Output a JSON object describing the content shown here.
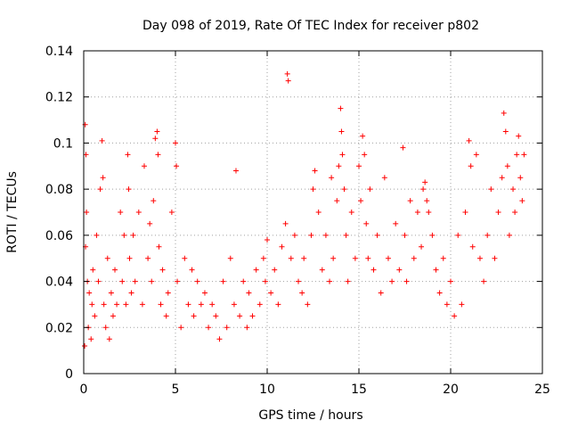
{
  "chart_data": {
    "type": "scatter",
    "title": "Day 098 of 2019, Rate Of TEC Index for receiver p802",
    "xlabel": "GPS time / hours",
    "ylabel": "ROTI / TECUs",
    "xlim": [
      0,
      25
    ],
    "ylim": [
      0,
      0.14
    ],
    "x_ticks": [
      "0",
      "5",
      "10",
      "15",
      "20",
      "25"
    ],
    "y_ticks": [
      "0",
      "0.02",
      "0.04",
      "0.06",
      "0.08",
      "0.1",
      "0.12",
      "0.14"
    ],
    "grid": true,
    "marker": "plus",
    "color": "#ff0000",
    "series": [
      {
        "name": "ROTI",
        "x": [
          0.05,
          0.08,
          0.1,
          0.12,
          0.15,
          0.2,
          0.25,
          0.3,
          0.4,
          0.45,
          0.5,
          0.6,
          0.7,
          0.8,
          0.9,
          1.0,
          1.05,
          1.1,
          1.2,
          1.3,
          1.4,
          1.5,
          1.6,
          1.7,
          1.8,
          2.0,
          2.1,
          2.2,
          2.3,
          2.4,
          2.45,
          2.5,
          2.6,
          2.7,
          2.8,
          3.0,
          3.2,
          3.3,
          3.5,
          3.6,
          3.7,
          3.8,
          3.9,
          4.0,
          4.05,
          4.1,
          4.2,
          4.3,
          4.5,
          4.6,
          4.8,
          5.0,
          5.05,
          5.1,
          5.3,
          5.5,
          5.7,
          5.9,
          6.0,
          6.2,
          6.4,
          6.6,
          6.8,
          7.0,
          7.2,
          7.4,
          7.6,
          7.8,
          8.0,
          8.2,
          8.3,
          8.5,
          8.7,
          8.9,
          9.0,
          9.2,
          9.4,
          9.6,
          9.8,
          9.9,
          10.0,
          10.2,
          10.4,
          10.6,
          10.8,
          11.0,
          11.1,
          11.15,
          11.3,
          11.5,
          11.7,
          11.9,
          12.0,
          12.2,
          12.4,
          12.5,
          12.6,
          12.8,
          13.0,
          13.2,
          13.4,
          13.5,
          13.6,
          13.8,
          13.9,
          14.0,
          14.05,
          14.1,
          14.2,
          14.3,
          14.4,
          14.6,
          14.8,
          15.0,
          15.1,
          15.2,
          15.3,
          15.4,
          15.5,
          15.6,
          15.8,
          16.0,
          16.2,
          16.4,
          16.6,
          16.8,
          17.0,
          17.2,
          17.4,
          17.5,
          17.6,
          17.8,
          18.0,
          18.2,
          18.4,
          18.5,
          18.6,
          18.7,
          18.8,
          19.0,
          19.2,
          19.4,
          19.6,
          19.8,
          20.0,
          20.2,
          20.4,
          20.6,
          20.8,
          21.0,
          21.1,
          21.2,
          21.4,
          21.6,
          21.8,
          22.0,
          22.2,
          22.4,
          22.6,
          22.8,
          22.9,
          23.0,
          23.1,
          23.2,
          23.4,
          23.5,
          23.6,
          23.7,
          23.8,
          23.9,
          24.0
        ],
        "y": [
          0.012,
          0.108,
          0.055,
          0.095,
          0.07,
          0.04,
          0.02,
          0.035,
          0.015,
          0.03,
          0.045,
          0.025,
          0.06,
          0.04,
          0.08,
          0.101,
          0.085,
          0.03,
          0.02,
          0.05,
          0.015,
          0.035,
          0.025,
          0.045,
          0.03,
          0.07,
          0.04,
          0.06,
          0.03,
          0.095,
          0.08,
          0.05,
          0.035,
          0.06,
          0.04,
          0.07,
          0.03,
          0.09,
          0.05,
          0.065,
          0.04,
          0.075,
          0.102,
          0.105,
          0.095,
          0.055,
          0.03,
          0.045,
          0.025,
          0.035,
          0.07,
          0.1,
          0.09,
          0.04,
          0.02,
          0.05,
          0.03,
          0.045,
          0.025,
          0.04,
          0.03,
          0.035,
          0.02,
          0.03,
          0.025,
          0.015,
          0.04,
          0.02,
          0.05,
          0.03,
          0.088,
          0.025,
          0.04,
          0.02,
          0.035,
          0.025,
          0.045,
          0.03,
          0.05,
          0.04,
          0.058,
          0.035,
          0.045,
          0.03,
          0.055,
          0.065,
          0.13,
          0.127,
          0.05,
          0.06,
          0.04,
          0.035,
          0.05,
          0.03,
          0.06,
          0.08,
          0.088,
          0.07,
          0.045,
          0.06,
          0.04,
          0.085,
          0.05,
          0.075,
          0.09,
          0.115,
          0.105,
          0.095,
          0.08,
          0.06,
          0.04,
          0.07,
          0.05,
          0.09,
          0.075,
          0.103,
          0.095,
          0.065,
          0.05,
          0.08,
          0.045,
          0.06,
          0.035,
          0.085,
          0.05,
          0.04,
          0.065,
          0.045,
          0.098,
          0.06,
          0.04,
          0.075,
          0.05,
          0.07,
          0.055,
          0.08,
          0.083,
          0.075,
          0.07,
          0.06,
          0.045,
          0.035,
          0.05,
          0.03,
          0.04,
          0.025,
          0.06,
          0.03,
          0.07,
          0.101,
          0.09,
          0.055,
          0.095,
          0.05,
          0.04,
          0.06,
          0.08,
          0.05,
          0.07,
          0.085,
          0.113,
          0.105,
          0.09,
          0.06,
          0.08,
          0.07,
          0.095,
          0.103,
          0.085,
          0.075,
          0.095
        ]
      }
    ]
  }
}
